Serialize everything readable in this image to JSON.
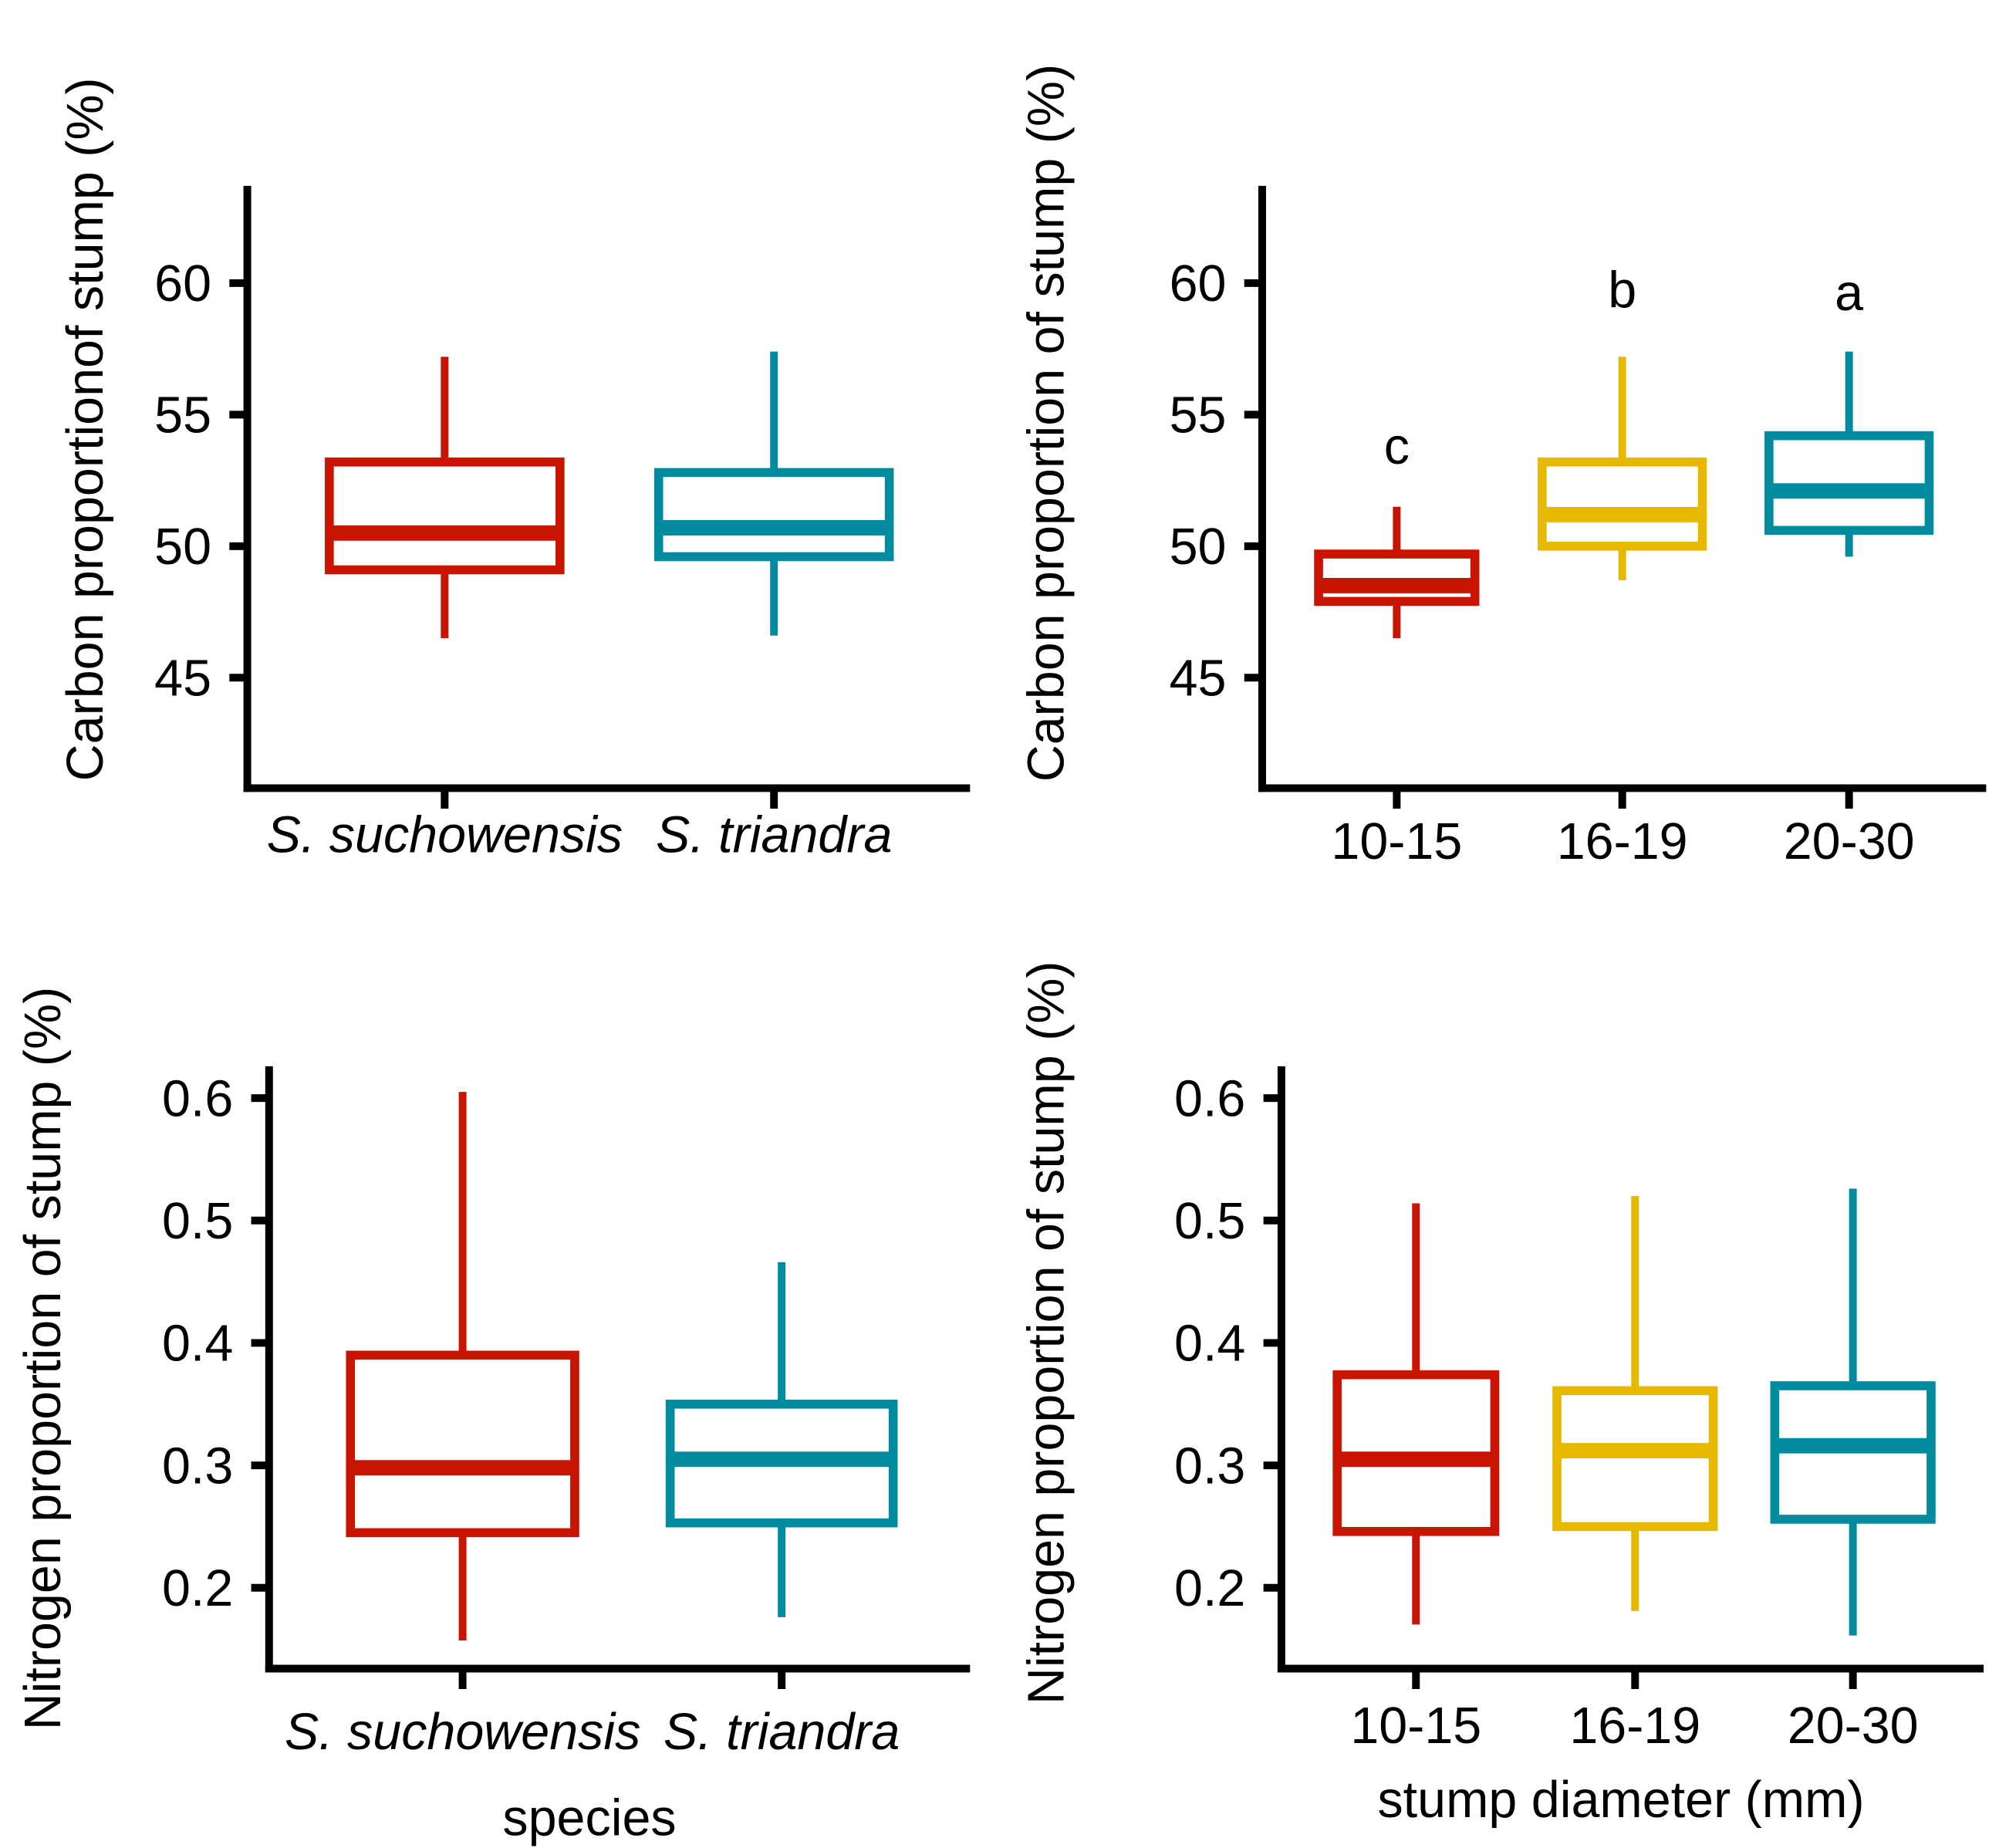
{
  "chart_data": [
    {
      "type": "box",
      "panel": "top-left",
      "ylabel": "Carbon proportionof stump (%)",
      "xlabel": "",
      "italic_categories": true,
      "categories": [
        "S. suchowensis",
        "S. triandra"
      ],
      "colors": [
        "#c81400",
        "#008c9e"
      ],
      "ylim": [
        40.8,
        63.7
      ],
      "yticks": [
        45,
        50,
        55,
        60
      ],
      "ytick_labels": [
        "45",
        "50",
        "55",
        "60"
      ],
      "boxes": [
        {
          "whisker_low": 46.5,
          "q1": 49.1,
          "median": 50.5,
          "q3": 53.2,
          "whisker_high": 57.2
        },
        {
          "whisker_low": 46.6,
          "q1": 49.6,
          "median": 50.7,
          "q3": 52.8,
          "whisker_high": 57.4
        }
      ],
      "letters": []
    },
    {
      "type": "box",
      "panel": "top-right",
      "ylabel": "Carbon proportion of stump (%)",
      "xlabel": "",
      "italic_categories": false,
      "categories": [
        "10-15",
        "16-19",
        "20-30"
      ],
      "colors": [
        "#c81400",
        "#e6b800",
        "#008c9e"
      ],
      "ylim": [
        40.8,
        63.7
      ],
      "yticks": [
        45,
        50,
        55,
        60
      ],
      "ytick_labels": [
        "45",
        "50",
        "55",
        "60"
      ],
      "boxes": [
        {
          "whisker_low": 46.5,
          "q1": 47.9,
          "median": 48.5,
          "q3": 49.7,
          "whisker_high": 51.5
        },
        {
          "whisker_low": 48.7,
          "q1": 50.0,
          "median": 51.2,
          "q3": 53.2,
          "whisker_high": 57.2
        },
        {
          "whisker_low": 49.6,
          "q1": 50.6,
          "median": 52.1,
          "q3": 54.2,
          "whisker_high": 57.4
        }
      ],
      "letters": [
        "c",
        "b",
        "a"
      ]
    },
    {
      "type": "box",
      "panel": "bottom-left",
      "ylabel": "Nitrogen proportion of stump (%)",
      "xlabel": "species",
      "italic_categories": true,
      "categories": [
        "S. suchowensis",
        "S. triandra"
      ],
      "colors": [
        "#c81400",
        "#008c9e"
      ],
      "ylim": [
        0.134,
        0.626
      ],
      "yticks": [
        0.2,
        0.3,
        0.4,
        0.5,
        0.6
      ],
      "ytick_labels": [
        "0.2",
        "0.3",
        "0.4",
        "0.5",
        "0.6"
      ],
      "boxes": [
        {
          "whisker_low": 0.157,
          "q1": 0.245,
          "median": 0.298,
          "q3": 0.39,
          "whisker_high": 0.605
        },
        {
          "whisker_low": 0.176,
          "q1": 0.253,
          "median": 0.305,
          "q3": 0.35,
          "whisker_high": 0.466
        }
      ],
      "letters": []
    },
    {
      "type": "box",
      "panel": "bottom-right",
      "ylabel": "Nitrogen proportion of stump (%)",
      "xlabel": "stump diameter (mm)",
      "italic_categories": false,
      "categories": [
        "10-15",
        "16-19",
        "20-30"
      ],
      "colors": [
        "#c81400",
        "#e6b800",
        "#008c9e"
      ],
      "ylim": [
        0.134,
        0.626
      ],
      "yticks": [
        0.2,
        0.3,
        0.4,
        0.5,
        0.6
      ],
      "ytick_labels": [
        "0.2",
        "0.3",
        "0.4",
        "0.5",
        "0.6"
      ],
      "boxes": [
        {
          "whisker_low": 0.17,
          "q1": 0.246,
          "median": 0.305,
          "q3": 0.374,
          "whisker_high": 0.514
        },
        {
          "whisker_low": 0.181,
          "q1": 0.25,
          "median": 0.312,
          "q3": 0.361,
          "whisker_high": 0.52
        },
        {
          "whisker_low": 0.161,
          "q1": 0.256,
          "median": 0.316,
          "q3": 0.365,
          "whisker_high": 0.526
        }
      ],
      "letters": []
    }
  ]
}
